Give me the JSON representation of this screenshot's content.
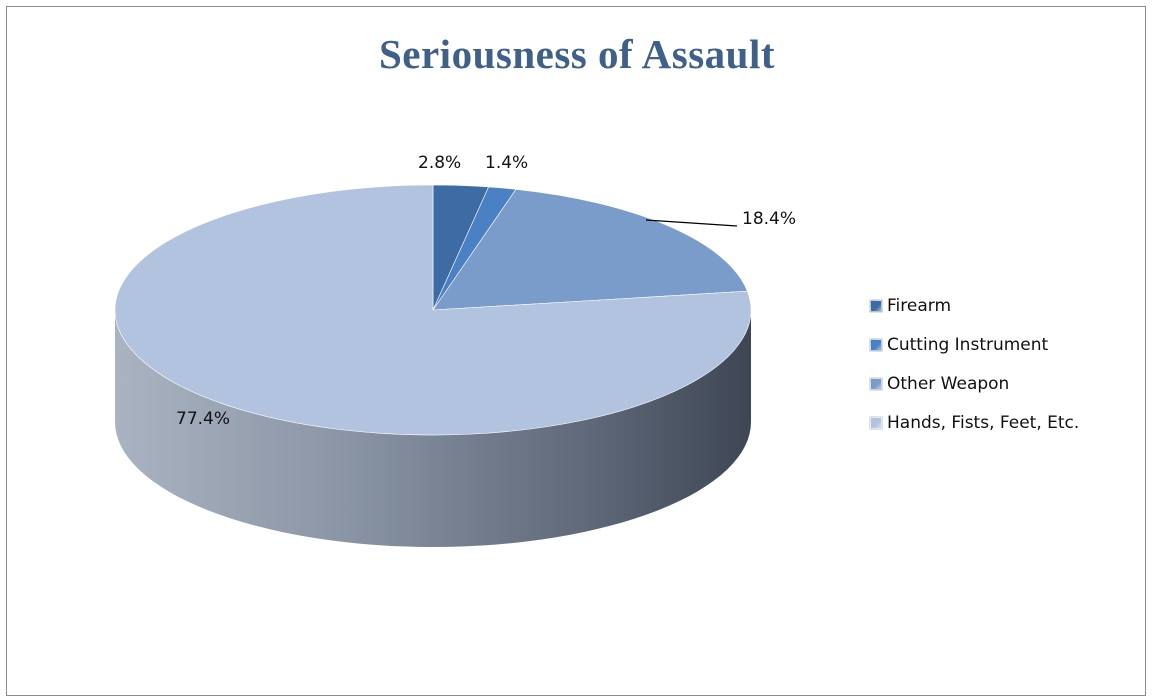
{
  "chart_data": {
    "type": "pie",
    "title": "Seriousness of Assault",
    "categories": [
      "Firearm",
      "Cutting Instrument",
      "Other Weapon",
      "Hands, Fists, Feet, Etc."
    ],
    "values": [
      2.8,
      1.4,
      18.4,
      77.4
    ],
    "value_labels": [
      "2.8%",
      "1.4%",
      "18.4%",
      "77.4%"
    ],
    "colors": [
      "#3d6ba3",
      "#4a80c4",
      "#7a9ccb",
      "#b2c3e0"
    ],
    "style": "3d",
    "legend_position": "right"
  }
}
